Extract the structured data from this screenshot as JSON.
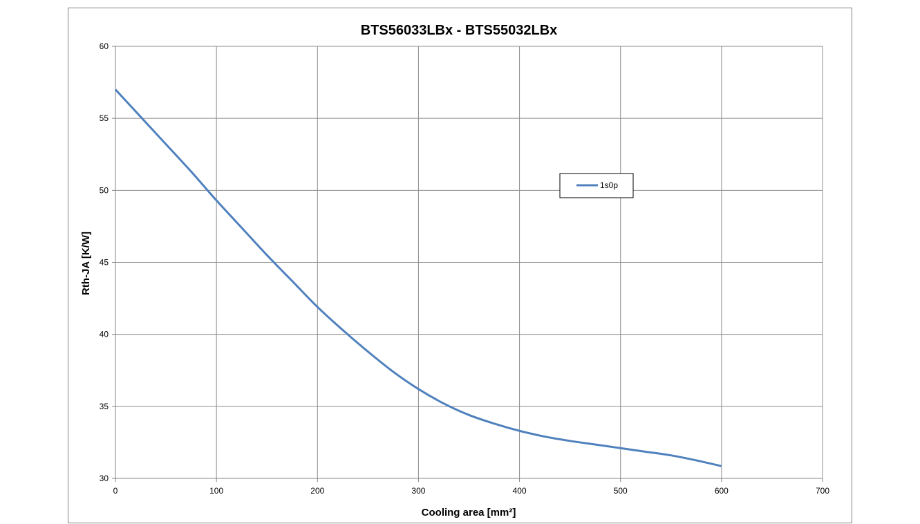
{
  "chart_data": {
    "type": "line",
    "title": "BTS56033LBx - BTS55032LBx",
    "xlabel": "Cooling area [mm²]",
    "ylabel": "Rth-JA [K/W]",
    "xlim": [
      0,
      700
    ],
    "ylim": [
      30,
      60
    ],
    "xticks": [
      0,
      100,
      200,
      300,
      400,
      500,
      600,
      700
    ],
    "yticks": [
      30,
      35,
      40,
      45,
      50,
      55,
      60
    ],
    "grid": true,
    "legend_position": "center-right",
    "series": [
      {
        "name": "1s0p",
        "color": "#4f81bd",
        "x": [
          0,
          25,
          50,
          75,
          100,
          125,
          150,
          175,
          200,
          225,
          250,
          275,
          300,
          325,
          350,
          375,
          400,
          425,
          450,
          475,
          500,
          525,
          550,
          575,
          600
        ],
        "y": [
          57.0,
          55.1,
          53.2,
          51.3,
          49.3,
          47.4,
          45.5,
          43.7,
          41.9,
          40.3,
          38.8,
          37.4,
          36.2,
          35.2,
          34.4,
          33.8,
          33.3,
          32.9,
          32.6,
          32.35,
          32.1,
          31.85,
          31.6,
          31.25,
          30.85
        ]
      }
    ]
  }
}
